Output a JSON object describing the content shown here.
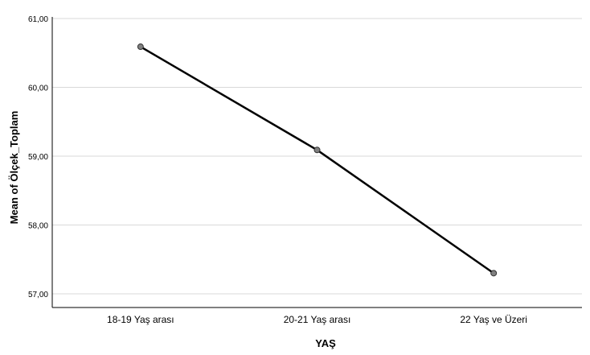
{
  "chart_data": {
    "type": "line",
    "xlabel": "YAŞ",
    "ylabel": "Mean of Ölçek_Toplam",
    "categories": [
      "18-19 Yaş arası",
      "20-21 Yaş arası",
      "22 Yaş ve Üzeri"
    ],
    "series": [
      {
        "values": [
          60.59,
          59.09,
          57.3
        ]
      }
    ],
    "ylim": [
      57,
      61
    ],
    "yticks": [
      57,
      58,
      59,
      60,
      61
    ],
    "ytick_labels": [
      "57,00",
      "58,00",
      "59,00",
      "60,00",
      "61,00"
    ],
    "grid": "horizontal",
    "line_color": "#000000",
    "marker_color": "#808080",
    "gridline_color": "#d9d9d9"
  }
}
